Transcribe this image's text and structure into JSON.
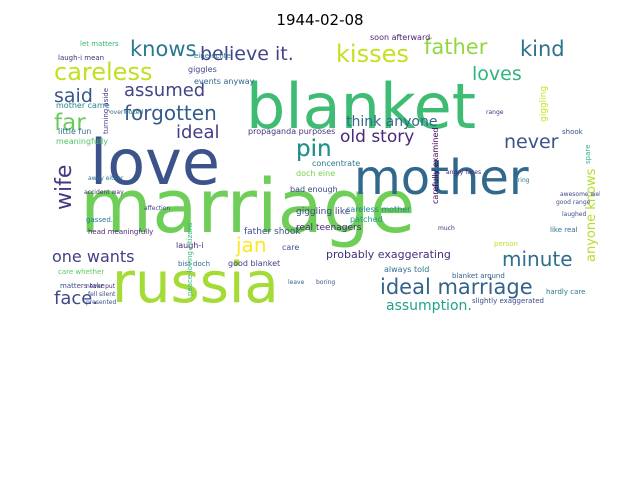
{
  "title": "1944-02-08",
  "words": [
    {
      "text": "marriage",
      "color": "#6ece58"
    },
    {
      "text": "russia",
      "color": "#a5db36"
    },
    {
      "text": "love",
      "color": "#3b528b"
    },
    {
      "text": "blanket",
      "color": "#3fbc73"
    },
    {
      "text": "mother",
      "color": "#31688e"
    },
    {
      "text": "kisses",
      "color": "#c8e020"
    },
    {
      "text": "careless",
      "color": "#c2df23"
    },
    {
      "text": "knows",
      "color": "#2a788e"
    },
    {
      "text": "believe it.",
      "color": "#404688"
    },
    {
      "text": "father",
      "color": "#90d743"
    },
    {
      "text": "kind",
      "color": "#2c728e"
    },
    {
      "text": "loves",
      "color": "#2fb47c"
    },
    {
      "text": "said",
      "color": "#39568c"
    },
    {
      "text": "assumed",
      "color": "#414487"
    },
    {
      "text": "forgotten",
      "color": "#375a8c"
    },
    {
      "text": "far",
      "color": "#67cc5c"
    },
    {
      "text": "ideal",
      "color": "#433e85"
    },
    {
      "text": "pin",
      "color": "#21908d"
    },
    {
      "text": "old story",
      "color": "#482878"
    },
    {
      "text": "never",
      "color": "#3b528b"
    },
    {
      "text": "wife",
      "color": "#453781"
    },
    {
      "text": "ideal marriage",
      "color": "#33638d"
    },
    {
      "text": "minute",
      "color": "#2e6f8e"
    },
    {
      "text": "jan",
      "color": "#fde725"
    },
    {
      "text": "one wants",
      "color": "#433e85"
    },
    {
      "text": "face.",
      "color": "#3e4a89"
    },
    {
      "text": "assumption.",
      "color": "#20a386"
    },
    {
      "text": "anyone knows",
      "color": "#b5de2b"
    },
    {
      "text": "think anyone",
      "color": "#31688e"
    },
    {
      "text": "probably exaggerating",
      "color": "#472d7b"
    },
    {
      "text": "pin",
      "color": "#21908d"
    },
    {
      "text": "soon afterward",
      "color": "#481f70"
    },
    {
      "text": "let matters",
      "color": "#35b779"
    },
    {
      "text": "laugh-i mean",
      "color": "#46327e"
    },
    {
      "text": "giggles",
      "color": "#3e4a89"
    },
    {
      "text": "mother came",
      "color": "#26828e"
    },
    {
      "text": "events anyway",
      "color": "#31688e"
    },
    {
      "text": "little fun",
      "color": "#2c728e"
    },
    {
      "text": "meaningfully",
      "color": "#52c569"
    },
    {
      "text": "turning aside",
      "color": "#433e85"
    },
    {
      "text": "propaganda purposes",
      "color": "#46327e"
    },
    {
      "text": "concentrate",
      "color": "#2a788e"
    },
    {
      "text": "bad enough",
      "color": "#3e4a89"
    },
    {
      "text": "doch eine",
      "color": "#7ad151"
    },
    {
      "text": "patched",
      "color": "#1f9e89"
    },
    {
      "text": "careless mother",
      "color": "#25858e"
    },
    {
      "text": "giggling like",
      "color": "#404688"
    },
    {
      "text": "real teenagers",
      "color": "#482878"
    },
    {
      "text": "father shook",
      "color": "#3b528b"
    },
    {
      "text": "always told",
      "color": "#2c728e"
    },
    {
      "text": "slightly exaggerated",
      "color": "#3e4a89"
    },
    {
      "text": "hardly care",
      "color": "#2a788e"
    },
    {
      "text": "blanket around",
      "color": "#34618d"
    },
    {
      "text": "care whether",
      "color": "#5ec962"
    },
    {
      "text": "matters take",
      "color": "#3e4a89"
    },
    {
      "text": "gassed.",
      "color": "#2a788e"
    },
    {
      "text": "head meaningfully",
      "color": "#482878"
    },
    {
      "text": "good blanket",
      "color": "#433e85"
    },
    {
      "text": "laugh-i",
      "color": "#481f70"
    },
    {
      "text": "care",
      "color": "#3b528b"
    },
    {
      "text": "bist doch",
      "color": "#2c728e"
    },
    {
      "text": "eine echte",
      "color": "#2a788e"
    },
    {
      "text": "shook",
      "color": "#3b528b"
    },
    {
      "text": "spare",
      "color": "#2fb47c"
    },
    {
      "text": "giggling",
      "color": "#cae11f"
    },
    {
      "text": "range",
      "color": "#46327e"
    },
    {
      "text": "like real",
      "color": "#2c728e"
    },
    {
      "text": "person",
      "color": "#bddf26"
    },
    {
      "text": "laughed",
      "color": "#3e4a89"
    },
    {
      "text": "angry faces",
      "color": "#481f70"
    },
    {
      "text": "carefully examined",
      "color": "#440154"
    },
    {
      "text": "bring",
      "color": "#2a788e"
    },
    {
      "text": "boring",
      "color": "#3b528b"
    },
    {
      "text": "leave",
      "color": "#31688e"
    },
    {
      "text": "much",
      "color": "#482878"
    },
    {
      "text": "peace-loving citizens",
      "color": "#35b779"
    },
    {
      "text": "affection",
      "color": "#3e4a89"
    },
    {
      "text": "accident way",
      "color": "#46327e"
    },
    {
      "text": "overlooked",
      "color": "#2a788e"
    },
    {
      "text": "awesome well",
      "color": "#404688"
    },
    {
      "text": "good range",
      "color": "#3b528b"
    },
    {
      "text": "away either",
      "color": "#2c728e"
    },
    {
      "text": "fell silent",
      "color": "#3e4a89"
    },
    {
      "text": "never put",
      "color": "#482878"
    },
    {
      "text": "presented",
      "color": "#3b528b"
    }
  ]
}
